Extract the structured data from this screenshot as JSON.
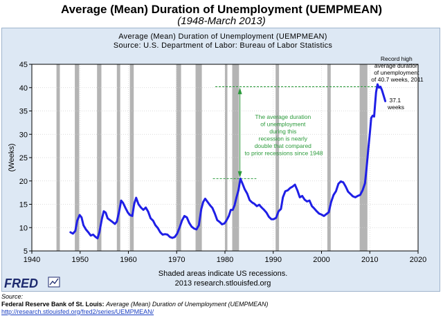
{
  "header": {
    "title": "Average (Mean) Duration of Unemployment (UEMPMEAN)",
    "subtitle": "(1948-March 2013)"
  },
  "chart_data": {
    "type": "line",
    "title": "Average (Mean) Duration of Unemployment (UEMPMEAN)",
    "subtitle": "Source: U.S. Department of Labor: Bureau of Labor Statistics",
    "xlabel": "",
    "ylabel": "(Weeks)",
    "xlim": [
      1940,
      2020
    ],
    "ylim": [
      5,
      45
    ],
    "x_ticks": [
      "1940",
      "1950",
      "1960",
      "1970",
      "1980",
      "1990",
      "2000",
      "2010",
      "2020"
    ],
    "y_ticks": [
      "5",
      "10",
      "15",
      "20",
      "25",
      "30",
      "35",
      "40",
      "45"
    ],
    "grid": true,
    "line_color": "#1f1fe6",
    "recession_color": "#b4b4b4",
    "recessions": [
      [
        1945.1,
        1945.8
      ],
      [
        1948.9,
        1949.8
      ],
      [
        1953.5,
        1954.4
      ],
      [
        1957.6,
        1958.3
      ],
      [
        1960.3,
        1961.1
      ],
      [
        1969.9,
        1970.9
      ],
      [
        1973.9,
        1975.2
      ],
      [
        1980.0,
        1980.5
      ],
      [
        1981.5,
        1982.9
      ],
      [
        1990.5,
        1991.2
      ],
      [
        2001.2,
        2001.9
      ],
      [
        2007.9,
        2009.5
      ]
    ],
    "series": [
      {
        "values": [
          [
            1948.0,
            9.0
          ],
          [
            1948.5,
            8.7
          ],
          [
            1949.0,
            9.3
          ],
          [
            1949.4,
            11.5
          ],
          [
            1949.9,
            12.7
          ],
          [
            1950.3,
            12.2
          ],
          [
            1950.7,
            10.5
          ],
          [
            1951.2,
            9.6
          ],
          [
            1951.7,
            9.0
          ],
          [
            1952.2,
            8.3
          ],
          [
            1952.7,
            8.5
          ],
          [
            1953.2,
            8.0
          ],
          [
            1953.6,
            7.7
          ],
          [
            1954.0,
            9.0
          ],
          [
            1954.5,
            11.8
          ],
          [
            1954.9,
            13.5
          ],
          [
            1955.3,
            13.2
          ],
          [
            1955.7,
            12.0
          ],
          [
            1956.2,
            11.6
          ],
          [
            1956.7,
            11.2
          ],
          [
            1957.2,
            10.8
          ],
          [
            1957.6,
            11.3
          ],
          [
            1958.1,
            13.5
          ],
          [
            1958.5,
            15.8
          ],
          [
            1958.9,
            15.3
          ],
          [
            1959.4,
            14.2
          ],
          [
            1959.9,
            13.2
          ],
          [
            1960.3,
            12.7
          ],
          [
            1960.8,
            12.5
          ],
          [
            1961.2,
            15.1
          ],
          [
            1961.6,
            16.4
          ],
          [
            1962.1,
            15.0
          ],
          [
            1962.6,
            14.3
          ],
          [
            1963.1,
            13.8
          ],
          [
            1963.6,
            14.3
          ],
          [
            1964.1,
            13.4
          ],
          [
            1964.6,
            12.0
          ],
          [
            1965.1,
            11.5
          ],
          [
            1965.6,
            10.5
          ],
          [
            1966.1,
            9.9
          ],
          [
            1966.6,
            9.0
          ],
          [
            1967.1,
            8.5
          ],
          [
            1967.6,
            8.6
          ],
          [
            1968.1,
            8.5
          ],
          [
            1968.6,
            8.0
          ],
          [
            1969.1,
            7.8
          ],
          [
            1969.6,
            8.0
          ],
          [
            1970.1,
            8.7
          ],
          [
            1970.6,
            10.0
          ],
          [
            1971.1,
            11.5
          ],
          [
            1971.6,
            12.5
          ],
          [
            1972.1,
            12.2
          ],
          [
            1972.6,
            11.0
          ],
          [
            1973.1,
            10.2
          ],
          [
            1973.6,
            9.8
          ],
          [
            1974.1,
            9.6
          ],
          [
            1974.6,
            10.5
          ],
          [
            1975.1,
            14.0
          ],
          [
            1975.5,
            15.5
          ],
          [
            1975.9,
            16.2
          ],
          [
            1976.4,
            15.5
          ],
          [
            1976.9,
            14.8
          ],
          [
            1977.4,
            14.2
          ],
          [
            1977.9,
            13.0
          ],
          [
            1978.4,
            11.6
          ],
          [
            1978.9,
            11.2
          ],
          [
            1979.4,
            10.7
          ],
          [
            1979.9,
            10.9
          ],
          [
            1980.3,
            11.5
          ],
          [
            1980.8,
            12.5
          ],
          [
            1981.2,
            13.8
          ],
          [
            1981.6,
            13.8
          ],
          [
            1982.0,
            14.8
          ],
          [
            1982.4,
            16.5
          ],
          [
            1982.8,
            18.0
          ],
          [
            1983.2,
            20.5
          ],
          [
            1983.6,
            19.5
          ],
          [
            1984.1,
            18.2
          ],
          [
            1984.6,
            17.3
          ],
          [
            1985.1,
            15.9
          ],
          [
            1985.6,
            15.4
          ],
          [
            1986.1,
            15.1
          ],
          [
            1986.6,
            14.6
          ],
          [
            1987.1,
            14.9
          ],
          [
            1987.6,
            14.3
          ],
          [
            1988.1,
            13.8
          ],
          [
            1988.6,
            13.2
          ],
          [
            1989.1,
            12.3
          ],
          [
            1989.6,
            11.8
          ],
          [
            1990.1,
            11.8
          ],
          [
            1990.6,
            12.1
          ],
          [
            1991.1,
            13.5
          ],
          [
            1991.6,
            14.0
          ],
          [
            1992.0,
            16.5
          ],
          [
            1992.5,
            17.8
          ],
          [
            1993.0,
            18.0
          ],
          [
            1993.5,
            18.5
          ],
          [
            1994.0,
            18.8
          ],
          [
            1994.5,
            19.2
          ],
          [
            1995.0,
            18.0
          ],
          [
            1995.5,
            16.5
          ],
          [
            1996.0,
            16.8
          ],
          [
            1996.5,
            16.0
          ],
          [
            1997.0,
            15.6
          ],
          [
            1997.5,
            15.8
          ],
          [
            1998.0,
            14.6
          ],
          [
            1998.5,
            14.1
          ],
          [
            1999.0,
            13.5
          ],
          [
            1999.5,
            13.0
          ],
          [
            2000.0,
            12.8
          ],
          [
            2000.5,
            12.5
          ],
          [
            2001.0,
            12.9
          ],
          [
            2001.5,
            13.3
          ],
          [
            2002.0,
            15.5
          ],
          [
            2002.5,
            17.0
          ],
          [
            2003.0,
            17.8
          ],
          [
            2003.5,
            19.4
          ],
          [
            2004.0,
            19.9
          ],
          [
            2004.5,
            19.7
          ],
          [
            2005.0,
            18.8
          ],
          [
            2005.5,
            17.7
          ],
          [
            2006.0,
            17.2
          ],
          [
            2006.5,
            16.7
          ],
          [
            2007.0,
            16.5
          ],
          [
            2007.5,
            16.8
          ],
          [
            2008.0,
            17.0
          ],
          [
            2008.5,
            18.0
          ],
          [
            2009.0,
            19.5
          ],
          [
            2009.3,
            22.5
          ],
          [
            2009.7,
            27.0
          ],
          [
            2010.0,
            30.2
          ],
          [
            2010.3,
            33.5
          ],
          [
            2010.6,
            34.0
          ],
          [
            2010.9,
            33.8
          ],
          [
            2011.1,
            36.5
          ],
          [
            2011.3,
            39.0
          ],
          [
            2011.6,
            40.7
          ],
          [
            2011.9,
            40.0
          ],
          [
            2012.2,
            40.2
          ],
          [
            2012.5,
            39.5
          ],
          [
            2012.8,
            38.5
          ],
          [
            2013.0,
            37.8
          ],
          [
            2013.2,
            37.1
          ]
        ]
      }
    ],
    "annotations": {
      "record_high": "Record high average duration of unemployment of 40.7 weeks, 2011",
      "latest": "37.1 weeks",
      "comparison": "The average duration of unemployment during this recession is nearly double that compared to prior recessions since 1948",
      "comparison_color": "#2a9a3a"
    },
    "footer": {
      "shaded_note": "Shaded areas indicate US recessions.",
      "site_note": "2013 research.stlouisfed.org",
      "logo": "FRED"
    }
  },
  "source": {
    "label": "Source:",
    "org": "Federal Reserve Bank of St. Louis:",
    "series_title": "Average (Mean) Duration of Unemployment (UEMPMEAN)",
    "url": "http://research.stlouisfed.org/fred2/series/UEMPMEAN/"
  }
}
